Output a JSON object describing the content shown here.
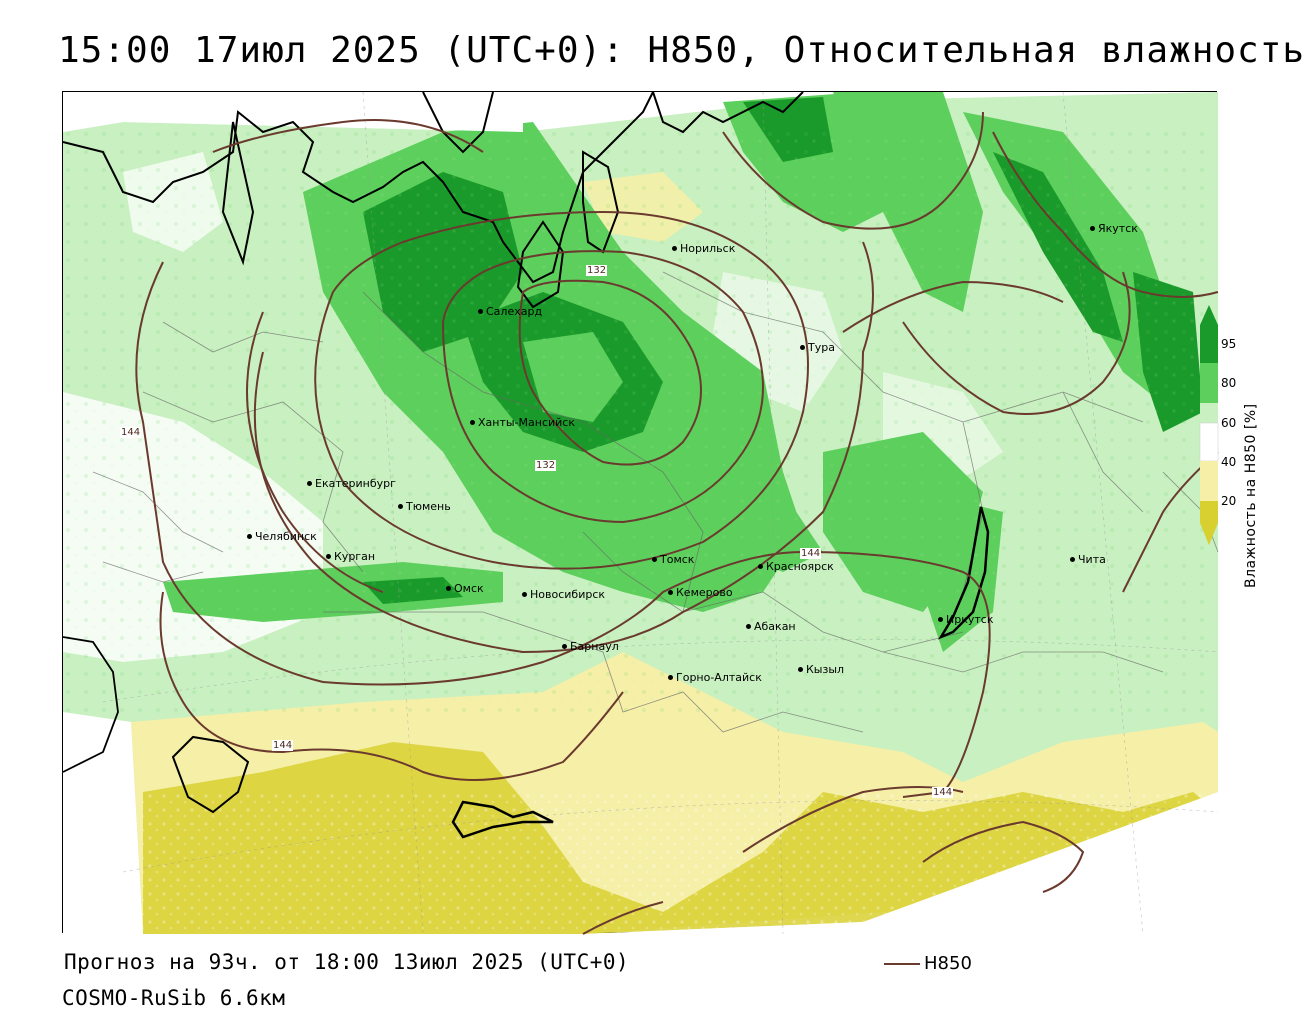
{
  "title": "15:00 17июл 2025 (UTC+0): H850, Относительная влажность",
  "footer": {
    "forecast": "Прогноз на 93ч. от 18:00 13июл 2025 (UTC+0)",
    "model": "COSMO-RuSib 6.6км"
  },
  "legend": {
    "line_label": "H850",
    "line_color": "#6b3a2e"
  },
  "colorbar": {
    "title": "Влажность на H850 [%]",
    "ticks": [
      "95",
      "80",
      "60",
      "40",
      "20"
    ],
    "colors": {
      "very_dry": "#d8d030",
      "dry": "#f5efa8",
      "neutral": "#ffffff",
      "moist": "#c8f0c0",
      "wet": "#5ccf5c",
      "very_wet": "#1a9a2a"
    }
  },
  "isolines": {
    "labels": [
      "144",
      "132",
      "132",
      "144",
      "144",
      "144"
    ]
  },
  "cities": [
    {
      "name": "Норильск"
    },
    {
      "name": "Якутск"
    },
    {
      "name": "Салехард"
    },
    {
      "name": "Тура"
    },
    {
      "name": "Ханты-Мансийск"
    },
    {
      "name": "Екатеринбург"
    },
    {
      "name": "Тюмень"
    },
    {
      "name": "Челябинск"
    },
    {
      "name": "Курган"
    },
    {
      "name": "Омск"
    },
    {
      "name": "Томск"
    },
    {
      "name": "Красноярск"
    },
    {
      "name": "Новосибирск"
    },
    {
      "name": "Кемерово"
    },
    {
      "name": "Чита"
    },
    {
      "name": "Иркутск"
    },
    {
      "name": "Абакан"
    },
    {
      "name": "Барнаул"
    },
    {
      "name": "Кызыл"
    },
    {
      "name": "Горно-Алтайск"
    }
  ]
}
